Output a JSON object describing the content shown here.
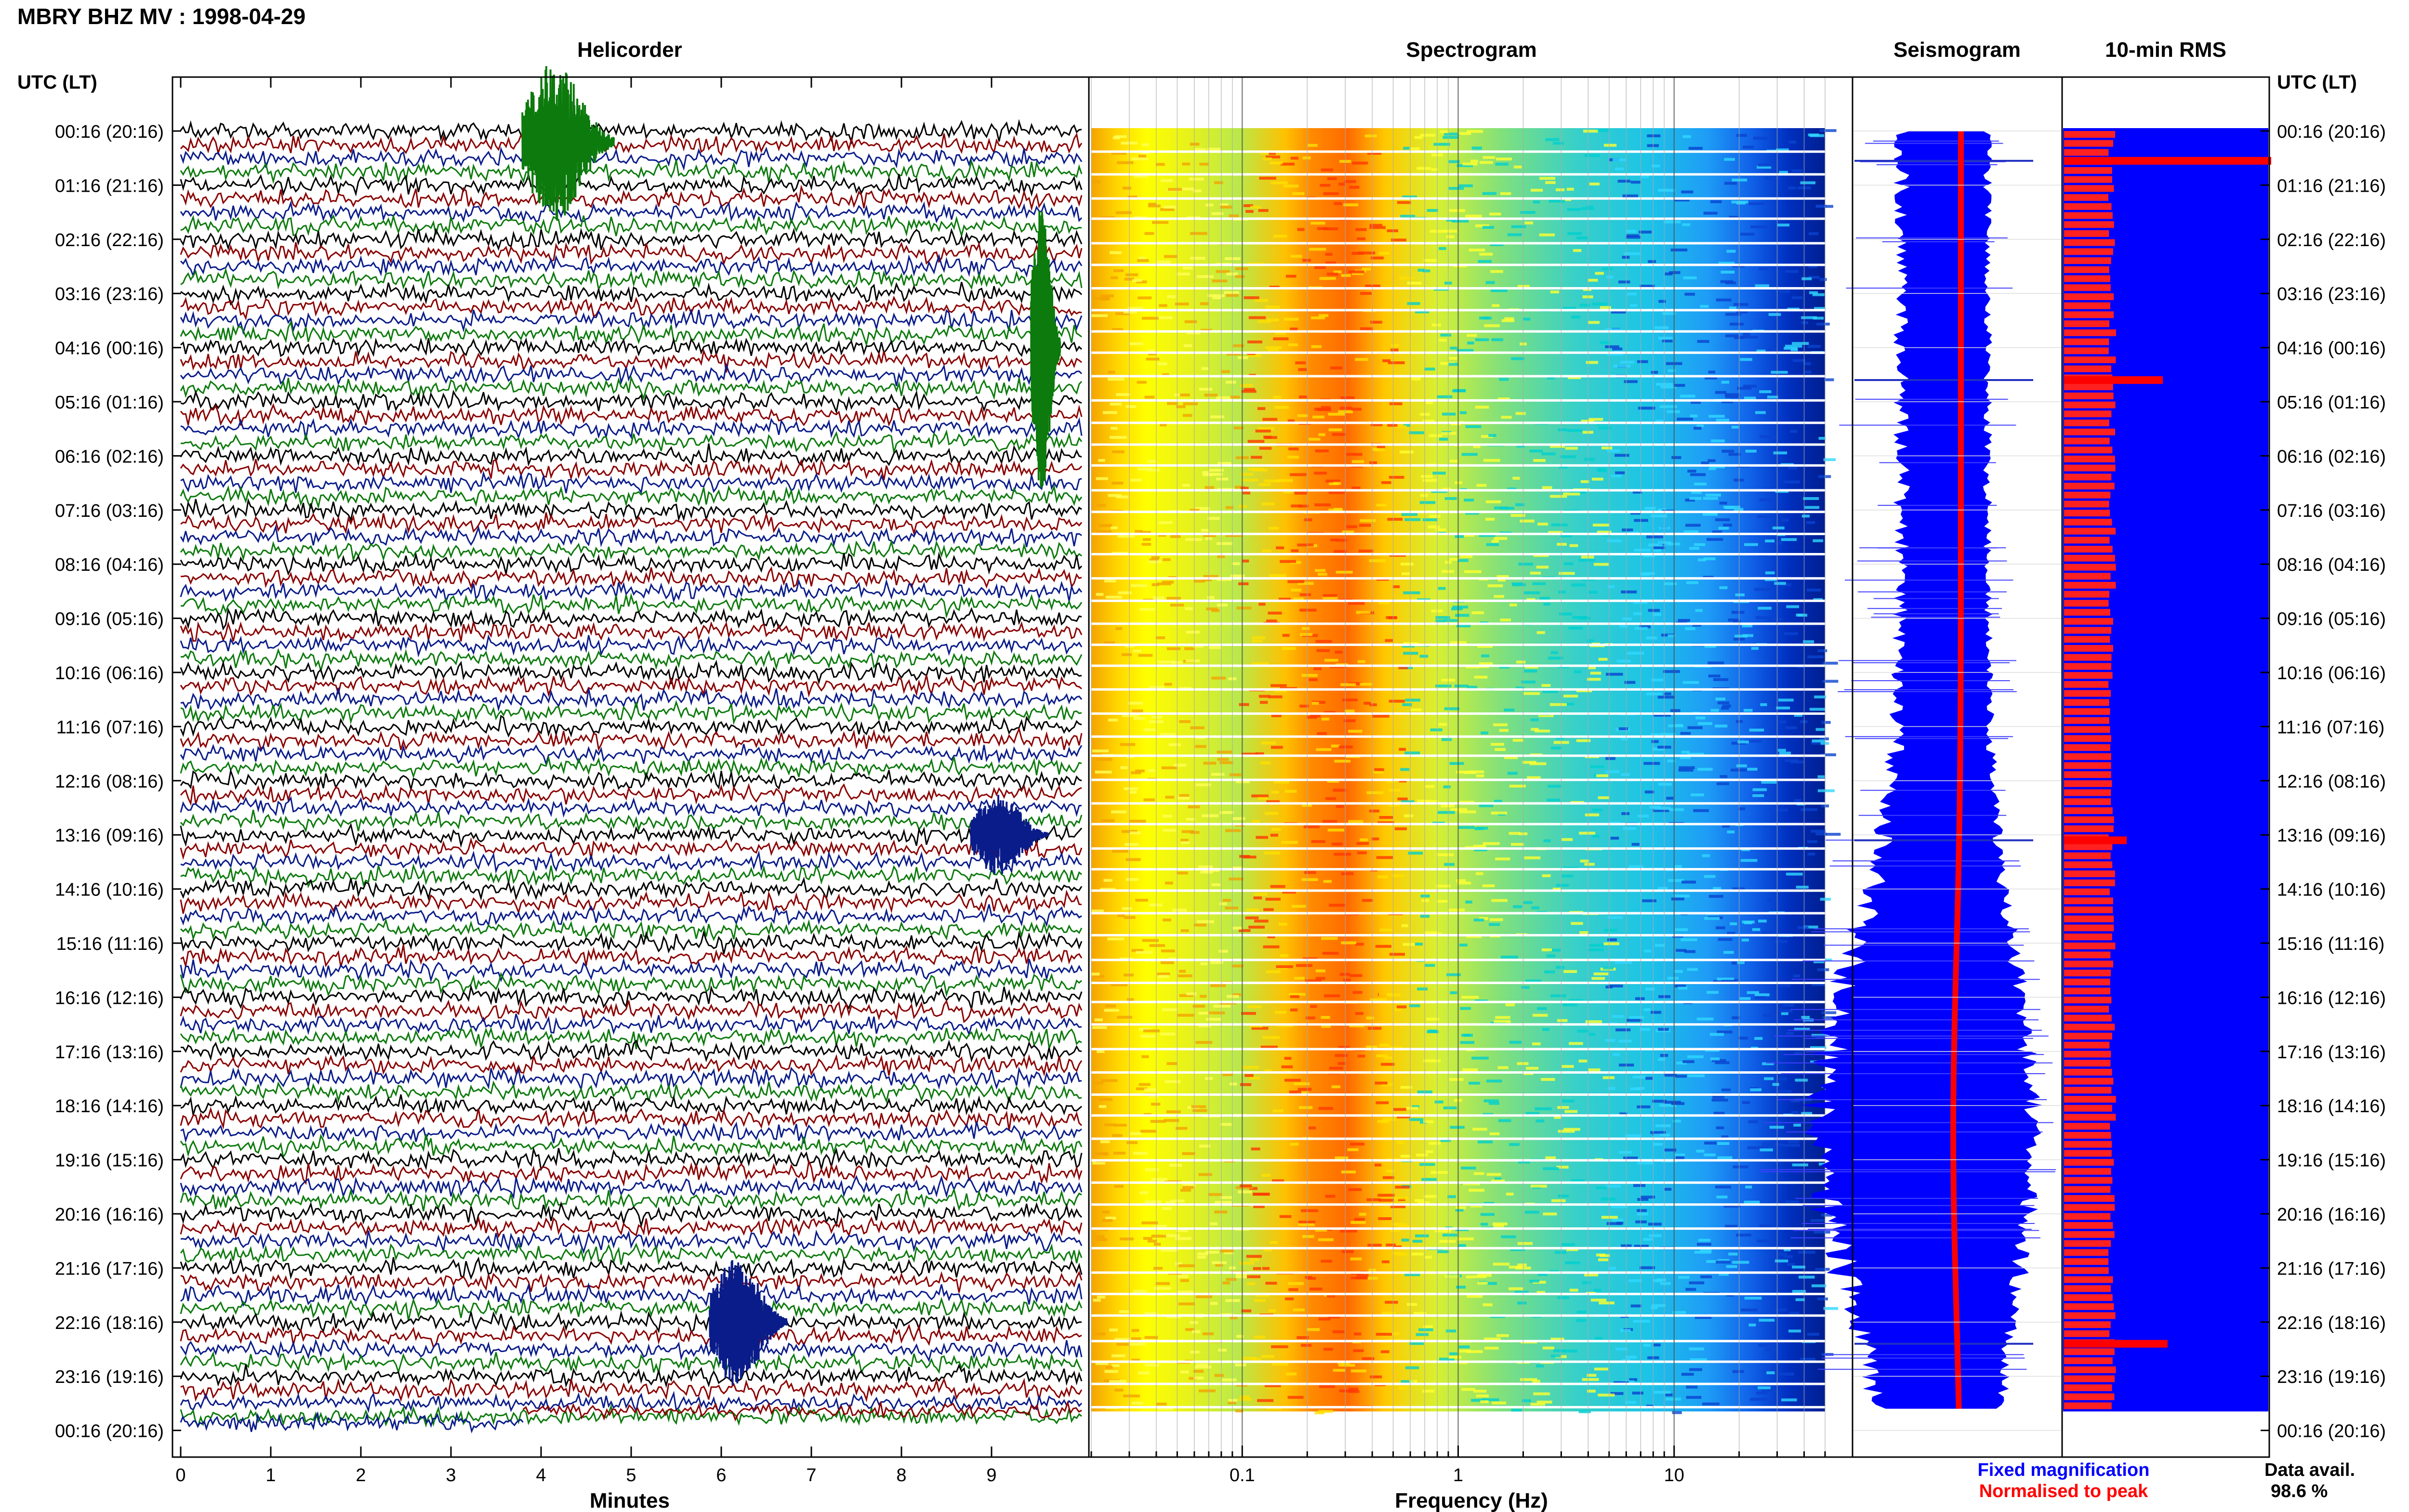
{
  "page_title": "MBRY BHZ MV : 1998-04-29",
  "chart_data": [
    {
      "type": "heatmap",
      "title": "Helicorder",
      "xlabel": "Minutes",
      "ylabel": "UTC (LT)",
      "xlim": [
        0,
        10
      ],
      "x_ticks": [
        "0",
        "1",
        "2",
        "3",
        "4",
        "5",
        "6",
        "7",
        "8",
        "9"
      ],
      "row_labels": [
        "00:16 (20:16)",
        "01:16 (21:16)",
        "02:16 (22:16)",
        "03:16 (23:16)",
        "04:16 (00:16)",
        "05:16 (01:16)",
        "06:16 (02:16)",
        "07:16 (03:16)",
        "08:16 (04:16)",
        "09:16 (05:16)",
        "10:16 (06:16)",
        "11:16 (07:16)",
        "12:16 (08:16)",
        "13:16 (09:16)",
        "14:16 (10:16)",
        "15:16 (11:16)",
        "16:16 (12:16)",
        "17:16 (13:16)",
        "18:16 (14:16)",
        "19:16 (15:16)",
        "20:16 (16:16)",
        "21:16 (17:16)",
        "22:16 (18:16)",
        "23:16 (19:16)",
        "00:16 (20:16)"
      ],
      "trace_colors": [
        "#000000",
        "#8b0000",
        "#0a1c8a",
        "#0c7a0c"
      ],
      "events": [
        {
          "hour_row": 0.2,
          "minute": 4.3,
          "color": "#0c7a0c",
          "description": "large green burst"
        },
        {
          "hour_row": 4.0,
          "minute": 9.6,
          "color": "#0c7a0c",
          "description": "large green burst"
        },
        {
          "hour_row": 13.0,
          "minute": 9.2,
          "color": "#0a1c8a",
          "description": "blue event"
        },
        {
          "hour_row": 22.0,
          "minute": 6.3,
          "color": "#0a1c8a",
          "description": "large blue event"
        }
      ]
    },
    {
      "type": "heatmap",
      "title": "Spectrogram",
      "xlabel": "Frequency (Hz)",
      "x_scale": "log",
      "xlim": [
        0.02,
        50
      ],
      "x_ticks": [
        "0.1",
        "1",
        "10"
      ],
      "colors": [
        "#f6a400",
        "#ffff00",
        "#00d6d6",
        "#1ec9ff",
        "#0022b4"
      ],
      "peak_band_hz": [
        0.22,
        0.6
      ]
    },
    {
      "type": "area",
      "title": "Seismogram",
      "series": [
        {
          "name": "Fixed magnification",
          "color": "#0000ff"
        },
        {
          "name": "Normalised to peak",
          "color": "#ff0000"
        }
      ]
    },
    {
      "type": "bar",
      "title": "10-min RMS",
      "colors": [
        "#0000ff",
        "#ff0000"
      ],
      "ylabel": "UTC (LT)",
      "spikes_at_hour_row": [
        0.55,
        4.6,
        13.1,
        22.4
      ]
    }
  ],
  "legend": {
    "fixed_label": "Fixed magnification",
    "fixed_color": "#0000ff",
    "norm_label": "Normalised to peak",
    "norm_color": "#ff0000"
  },
  "data_avail": {
    "label": "Data avail.",
    "value": "98.6 %"
  }
}
